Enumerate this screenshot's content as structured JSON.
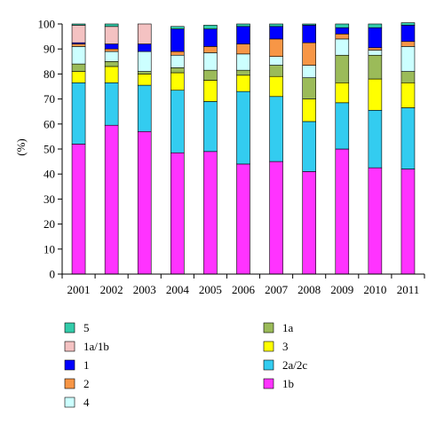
{
  "chart_data": {
    "type": "bar",
    "stacked": true,
    "ylabel": "(%)",
    "ylim": [
      0,
      100
    ],
    "yticks": [
      0,
      10,
      20,
      30,
      40,
      50,
      60,
      70,
      80,
      90,
      100
    ],
    "categories": [
      "2001",
      "2002",
      "2003",
      "2004",
      "2005",
      "2006",
      "2007",
      "2008",
      "2009",
      "2010",
      "2011"
    ],
    "series": [
      {
        "name": "1b",
        "color": "#ff33ff",
        "values": [
          52,
          59.5,
          57,
          48.5,
          49,
          44,
          45,
          41,
          50,
          42.5,
          42
        ]
      },
      {
        "name": "2a/2c",
        "color": "#33ccf0",
        "values": [
          24.5,
          17,
          18.5,
          25,
          20,
          29,
          26,
          20,
          18.5,
          23,
          24.5
        ]
      },
      {
        "name": "3",
        "color": "#ffff00",
        "values": [
          4.5,
          6.5,
          4.5,
          7,
          8.5,
          6.5,
          8,
          9,
          8,
          12.5,
          10
        ]
      },
      {
        "name": "1a",
        "color": "#9bbb59",
        "values": [
          3,
          2,
          1,
          2,
          4,
          2,
          4.5,
          8.5,
          11,
          9.5,
          4.5
        ]
      },
      {
        "name": "4",
        "color": "#ccffff",
        "values": [
          7,
          4,
          8,
          5,
          7,
          6.5,
          3.5,
          5,
          6.5,
          2,
          10
        ]
      },
      {
        "name": "2",
        "color": "#f79646",
        "values": [
          1,
          1,
          0,
          1.5,
          2.5,
          4,
          7,
          9,
          2,
          1,
          2
        ]
      },
      {
        "name": "1",
        "color": "#0000ff",
        "values": [
          0.5,
          2,
          3,
          9,
          7,
          7,
          5,
          7,
          2.5,
          8,
          6.5
        ]
      },
      {
        "name": "1a/1b",
        "color": "#f4c2c2",
        "values": [
          7,
          7,
          8,
          0,
          0,
          0,
          0,
          0,
          0,
          0,
          0
        ]
      },
      {
        "name": "5",
        "color": "#33ccaa",
        "values": [
          0.5,
          1,
          0,
          1,
          1.5,
          1,
          1,
          0.5,
          1.5,
          1.5,
          1
        ]
      }
    ],
    "legend": {
      "columns": [
        [
          "5",
          "1a/1b",
          "1",
          "2",
          "4"
        ],
        [
          "1a",
          "3",
          "2a/2c",
          "1b"
        ]
      ]
    }
  }
}
